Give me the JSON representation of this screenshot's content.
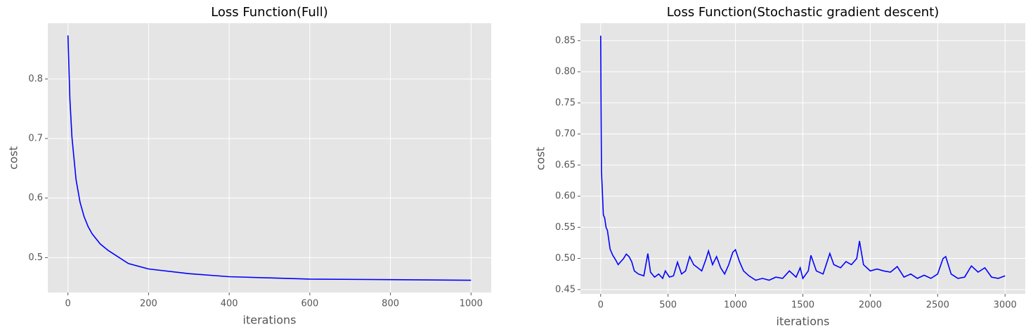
{
  "chart_data": [
    {
      "type": "line",
      "title": "Loss Function(Full)",
      "xlabel": "iterations",
      "ylabel": "cost",
      "x": [
        0,
        5,
        10,
        20,
        30,
        40,
        50,
        60,
        80,
        100,
        150,
        200,
        300,
        400,
        500,
        600,
        800,
        1000
      ],
      "values": [
        0.873,
        0.765,
        0.702,
        0.631,
        0.593,
        0.569,
        0.552,
        0.54,
        0.523,
        0.512,
        0.49,
        0.481,
        0.473,
        0.468,
        0.466,
        0.464,
        0.463,
        0.462
      ],
      "color": "#0000ff",
      "grid": true,
      "xlim": [
        -50,
        1050
      ],
      "xticks": [
        0,
        200,
        400,
        600,
        800,
        1000
      ],
      "ylim": [
        0.4414,
        0.8936
      ],
      "yticks": [
        0.5,
        0.6,
        0.7,
        0.8
      ]
    },
    {
      "type": "line",
      "title": "Loss Function(Stochastic gradient descent)",
      "xlabel": "iterations",
      "ylabel": "cost",
      "x": [
        0,
        3,
        6,
        10,
        20,
        30,
        40,
        50,
        60,
        70,
        90,
        110,
        130,
        150,
        170,
        190,
        210,
        230,
        250,
        280,
        320,
        350,
        370,
        400,
        430,
        460,
        480,
        510,
        540,
        570,
        600,
        630,
        660,
        690,
        720,
        750,
        780,
        800,
        830,
        860,
        890,
        920,
        950,
        980,
        1000,
        1030,
        1060,
        1100,
        1150,
        1200,
        1250,
        1300,
        1350,
        1400,
        1450,
        1480,
        1500,
        1540,
        1560,
        1600,
        1650,
        1700,
        1730,
        1780,
        1820,
        1860,
        1900,
        1920,
        1950,
        2000,
        2050,
        2100,
        2150,
        2200,
        2250,
        2300,
        2350,
        2400,
        2450,
        2500,
        2540,
        2560,
        2600,
        2650,
        2700,
        2750,
        2800,
        2850,
        2900,
        2950,
        3000
      ],
      "values": [
        0.858,
        0.75,
        0.64,
        0.62,
        0.57,
        0.565,
        0.55,
        0.545,
        0.53,
        0.515,
        0.505,
        0.498,
        0.49,
        0.495,
        0.5,
        0.507,
        0.503,
        0.495,
        0.48,
        0.475,
        0.472,
        0.508,
        0.478,
        0.47,
        0.475,
        0.468,
        0.48,
        0.47,
        0.472,
        0.494,
        0.475,
        0.48,
        0.503,
        0.49,
        0.485,
        0.48,
        0.498,
        0.512,
        0.49,
        0.503,
        0.485,
        0.475,
        0.49,
        0.51,
        0.514,
        0.495,
        0.48,
        0.472,
        0.465,
        0.468,
        0.465,
        0.47,
        0.468,
        0.48,
        0.47,
        0.485,
        0.468,
        0.48,
        0.505,
        0.48,
        0.475,
        0.508,
        0.49,
        0.485,
        0.495,
        0.49,
        0.5,
        0.528,
        0.49,
        0.48,
        0.483,
        0.48,
        0.478,
        0.487,
        0.47,
        0.475,
        0.468,
        0.473,
        0.468,
        0.475,
        0.5,
        0.503,
        0.475,
        0.468,
        0.47,
        0.488,
        0.478,
        0.485,
        0.47,
        0.468,
        0.472
      ],
      "color": "#0000ff",
      "grid": true,
      "xlim": [
        -150,
        3150
      ],
      "xticks": [
        0,
        500,
        1000,
        1500,
        2000,
        2500,
        3000
      ],
      "ylim": [
        0.443,
        0.878
      ],
      "yticks": [
        0.45,
        {
          "value": 0.5,
          "label": "0.50"
        },
        0.55,
        {
          "value": 0.6,
          "label": "0.60"
        },
        0.65,
        {
          "value": 0.7,
          "label": "0.70"
        },
        0.75,
        {
          "value": 0.8,
          "label": "0.80"
        },
        0.85
      ]
    }
  ]
}
